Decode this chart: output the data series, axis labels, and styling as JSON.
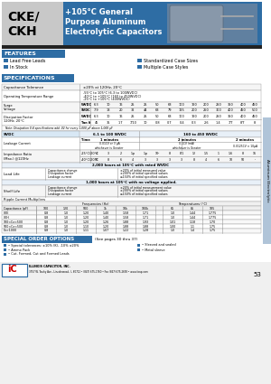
{
  "header_bg": "#2E6DA4",
  "header_gray": "#C0C0C0",
  "black_bar": "#222222",
  "features_bg": "#2E6DA4",
  "specs_bg": "#2E6DA4",
  "special_bg": "#2E6DA4",
  "page_bg": "#FFFFFF",
  "side_bg": "#B0C4D8",
  "blue_sq": "#2E6DA4",
  "table_border": "#999999",
  "row_alt": "#F5F5F5",
  "leakage_hdr_bg": "#DDEEFF",
  "load_hdr_bg": "#E8F0F8",
  "cke_ckh": "CKE/\nCKH",
  "title_line1": "+105°C General",
  "title_line2": "Purpose Aluminum",
  "title_line3": "Electrolytic Capacitors",
  "features_label": "FEATURES",
  "feat_left": [
    "Lead Free Leads",
    "In Stock"
  ],
  "feat_right": [
    "Standardized Case Sizes",
    "Multiple Case Styles"
  ],
  "specs_label": "SPECIFICATIONS",
  "cap_tol_label": "Capacitance Tolerance",
  "cap_tol_val": "±20% at 120Hz, 20°C",
  "op_temp_label": "Operating Temperature Range",
  "op_temp_vals": [
    "-55°C to 105°C (6.3 to 100WVDC)",
    "-40°C to +105°C (160 to 450WVDC)",
    "-25°C to +105°C (400WVDC)"
  ],
  "voltage_cols": [
    "6.3",
    "10",
    "16",
    "25",
    "25",
    "50",
    "63",
    "100",
    "160",
    "200",
    "250",
    "350",
    "400",
    "450"
  ],
  "wvdc_label": "WVDC",
  "svdc_label": "SVDC",
  "surge_label": "Surge\nVoltage",
  "surge_wvdc": [
    "6.3",
    "10",
    "16",
    "25",
    "25",
    "50",
    "63",
    "100",
    "160",
    "200",
    "250",
    "350",
    "400",
    "450"
  ],
  "surge_svdc": [
    "7.9",
    "13",
    "20",
    "32",
    "44",
    "63",
    "79",
    "125",
    "200",
    "250",
    "300",
    "400",
    "450",
    "500"
  ],
  "diss_label": "Dissipation Factor\n120Hz, 20°C",
  "diss_wvdc": [
    "6.3",
    "10",
    "16",
    "25",
    "25",
    "50",
    "63",
    "100",
    "160",
    "200",
    "250",
    "350",
    "400",
    "450"
  ],
  "diss_tan": [
    "45",
    "35",
    "1.7",
    "7/10",
    "10",
    "0.8",
    "0.7",
    "0.4",
    "0.3",
    "2.6",
    "1.4",
    "7/7",
    "8/7",
    "8"
  ],
  "diss_tan_label": "Tan δ",
  "note_text": "Note: Dissipation 0.4 specifications add .02 for every 1,000 μF above 1,000 μF",
  "leakage_label": "Leakage Current",
  "svdc_hdr": "SVDC",
  "leakage_range1": "6.1 to 100 WVDC",
  "leakage_range2": "160 to 450 WVDC",
  "leakage_time_label": "Time",
  "leakage_time1": "1 minutes",
  "leakage_time2": "2 minutes",
  "leakage_time3": "2 minutes",
  "leakage_formula1": "0.01CV or 3 μA\nwhichever is Greater",
  "leakage_formula2": "0.1CV (mA)\nwhichever is Greater",
  "leakage_formula3": "0.0125CV × 10μA",
  "imp_label": "Impedance Ratio\n(Max.) @120Hz",
  "imp_row1_label": "-25°C/20°C",
  "imp_row2_label": "-40°C/20°C",
  "imp_row1": [
    "4",
    "3",
    "2",
    "1.p",
    "1.p",
    "10¹",
    "8",
    "8/1",
    "12",
    "1.5",
    "1",
    "1.6",
    "8",
    "16"
  ],
  "imp_row2": [
    "10",
    "8",
    "6",
    "4",
    "3",
    "3",
    "3",
    "3",
    "8",
    "4",
    "6",
    "10",
    "50",
    "-"
  ],
  "load_life_hdr": "2,000 hours at 105°C with rated WVDC",
  "load_life_label": "Load Life",
  "load_life_items": [
    "Capacitance change",
    "Dissipation factor",
    "Leakage current"
  ],
  "load_life_vals": [
    "±20% of initial measured value",
    "±200% of initial specified values",
    "≤150% of initial specified values"
  ],
  "shelf_life_hdr": "1,000 hours at 105°C with no voltage applied.",
  "shelf_life_label": "Shelf Life",
  "shelf_life_items": [
    "Capacitance change",
    "Dissipation factor",
    "Leakage current"
  ],
  "shelf_life_vals": [
    "±20% of initial measurement value",
    "±200% of initial specified values",
    "≤150% of initial specified values"
  ],
  "ripple_label": "Ripple Current Multipliers",
  "ripple_freq_label": "Frequencies (Hz)",
  "ripple_temp_label": "Temperatures (°C)",
  "ripple_cap_label": "Capacitance (pF)",
  "ripple_freq_cols": [
    "100",
    "120",
    "500",
    "1k",
    "10k",
    "100k"
  ],
  "ripple_temp_cols": [
    "65",
    "85",
    "105"
  ],
  "ripple_rows": [
    [
      "CKE",
      "0.8",
      "1.0",
      "1.20",
      "1.40",
      "1.58",
      "1.71",
      "1.0",
      "1.44",
      "1.775"
    ],
    [
      "CKH",
      "0.8",
      "1.0",
      "1.20",
      "1.40",
      "1.58",
      "1.71",
      "1.0",
      "1.44",
      "1.775"
    ],
    [
      "100<Cx<500",
      "0.8",
      "1.0",
      "1.20",
      "1.26",
      "1.88",
      "1.93",
      "1.01",
      "1.18",
      "1.70"
    ],
    [
      "500<Cx<500",
      "0.8",
      "1.0",
      "1.10",
      "1.20",
      "1.88",
      "1.88",
      "1.00",
      "1.1",
      "1.75"
    ],
    [
      "Cx>1000",
      "0.8",
      "1.0",
      "1.11",
      "1.07",
      "1.22",
      "1.28",
      "1.0",
      "1.4",
      "1.75"
    ]
  ],
  "special_label": "SPECIAL ORDER OPTIONS",
  "special_note": "(See pages 30 thru 37)",
  "special_left": [
    "Special tolerances: ±10% (K), -10% ±20%",
    "Ammo Pack",
    "Cut, Formed, Cut and Formed Leads"
  ],
  "special_right": [
    "Sleeved and sealed",
    "Metal sleeve"
  ],
  "footer_logo": "iC",
  "footer_company": "ILLINOIS CAPACITOR, INC.",
  "footer_addr": "3757 W. Touhy Ave., Lincolnwood, IL 60712 • (847) 675-1760 • Fax (847) 675-2658 • www.iicap.com",
  "footer_page": "53",
  "side_text": "Aluminum Electrolytic"
}
